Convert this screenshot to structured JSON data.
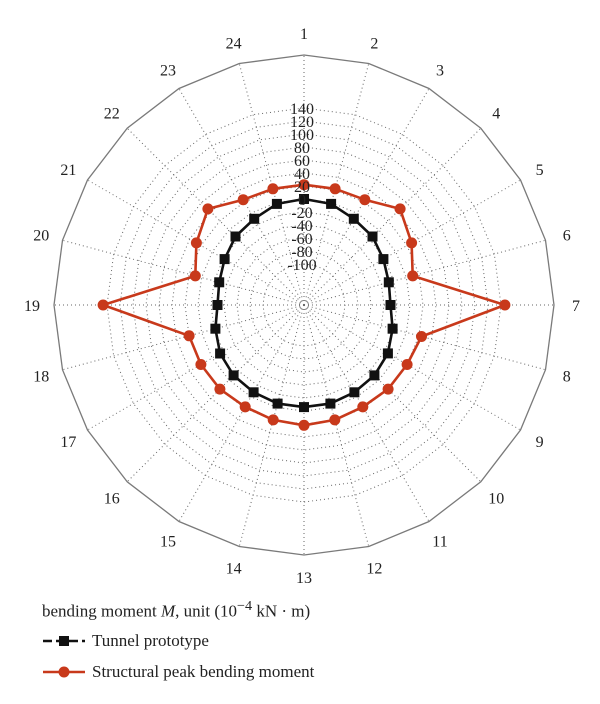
{
  "chart_data": {
    "type": "radar",
    "categories": [
      "1",
      "2",
      "3",
      "4",
      "5",
      "6",
      "7",
      "8",
      "9",
      "10",
      "11",
      "12",
      "13",
      "14",
      "15",
      "16",
      "17",
      "18",
      "19",
      "20",
      "21",
      "22",
      "23",
      "24"
    ],
    "radial_ticks": [
      "140",
      "120",
      "100",
      "80",
      "60",
      "40",
      "20",
      "0",
      "-20",
      "-40",
      "-60",
      "-80",
      "-100"
    ],
    "rlim": [
      -110,
      150
    ],
    "grid": true,
    "series": [
      {
        "name": "Tunnel prototype",
        "color": "#111111",
        "marker": "square",
        "values": [
          0,
          -2,
          -10,
          -14,
          -22,
          -28,
          -30,
          -22,
          -14,
          -10,
          -8,
          -6,
          -6,
          -6,
          -8,
          -10,
          -14,
          -22,
          -30,
          -28,
          -22,
          -14,
          -10,
          -2
        ]
      },
      {
        "name": "Structural peak bending moment",
        "color": "#c8391b",
        "marker": "circle",
        "values": [
          22,
          22,
          24,
          46,
          28,
          10,
          146,
          24,
          20,
          20,
          18,
          20,
          22,
          20,
          18,
          20,
          20,
          20,
          146,
          10,
          28,
          46,
          24,
          22
        ]
      }
    ]
  },
  "legend": {
    "title_prefix": "bending moment ",
    "title_var": "M",
    "title_unit_pre": ", unit (10",
    "title_exp": "−4",
    "title_unit_post": " kN · m)"
  }
}
